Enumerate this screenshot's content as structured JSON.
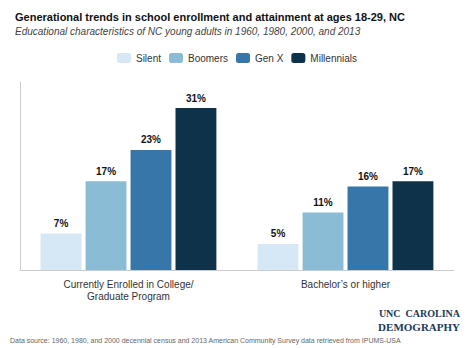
{
  "chart_data": {
    "type": "bar",
    "title": "Generational trends in school enrollment and attainment at ages 18-29, NC",
    "subtitle": "Educational characteristics of NC young adults in 1960, 1980, 2000, and 2013",
    "categories": [
      "Currently Enrolled in College/\nGraduate Program",
      "Bachelor’s or higher"
    ],
    "series": [
      {
        "name": "Silent",
        "color": "#d6e8f5",
        "values": [
          7,
          5
        ],
        "value_labels": [
          "7%",
          "5%"
        ]
      },
      {
        "name": "Boomers",
        "color": "#8bbcd6",
        "values": [
          17,
          11
        ],
        "value_labels": [
          "17%",
          "11%"
        ]
      },
      {
        "name": "Gen X",
        "color": "#3676a8",
        "values": [
          23,
          16
        ],
        "value_labels": [
          "23%",
          "16%"
        ]
      },
      {
        "name": "Millennials",
        "color": "#0d3249",
        "values": [
          31,
          17
        ],
        "value_labels": [
          "31%",
          "17%"
        ]
      }
    ],
    "ylim": [
      0,
      36
    ],
    "grid": false,
    "legend": "top",
    "data_labels": true,
    "tick_labels": "x",
    "annotations": [
      "Data source: 1960, 1980, and 2000 decennial census and 2013 American Community Survey data retrieved from IPUMS-USA",
      "UNC  CAROLINA",
      "DEMOGRAPHY"
    ]
  }
}
